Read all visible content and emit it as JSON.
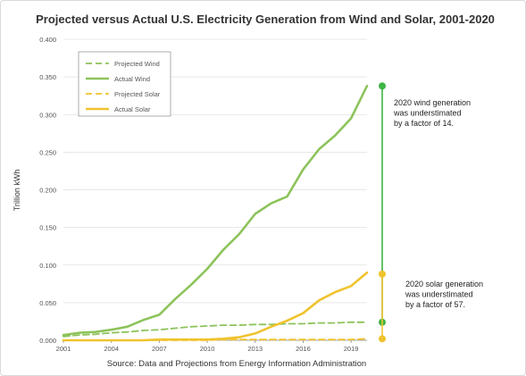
{
  "chart_data": {
    "type": "line",
    "title": "Projected versus Actual U.S. Electricity Generation from Wind and Solar, 2001-2020",
    "ylabel": "Trillion kWh",
    "xlabel": "",
    "source": "Source:  Data and Projections from Energy Information Administration",
    "xlim": [
      2001,
      2020
    ],
    "ylim": [
      0,
      0.4
    ],
    "x_ticks": [
      2001,
      2004,
      2007,
      2010,
      2013,
      2016,
      2019
    ],
    "y_ticks": [
      "0.000",
      "0.050",
      "0.100",
      "0.150",
      "0.200",
      "0.250",
      "0.300",
      "0.350",
      "0.400"
    ],
    "grid": "horizontal",
    "legend_position": "top-left",
    "x": [
      2001,
      2002,
      2003,
      2004,
      2005,
      2006,
      2007,
      2008,
      2009,
      2010,
      2011,
      2012,
      2013,
      2014,
      2015,
      2016,
      2017,
      2018,
      2019,
      2020
    ],
    "series": [
      {
        "name": "Projected Wind",
        "color": "#8dc35b",
        "style": "dashed",
        "values": [
          0.005,
          0.007,
          0.008,
          0.01,
          0.011,
          0.013,
          0.014,
          0.016,
          0.018,
          0.019,
          0.02,
          0.02,
          0.021,
          0.021,
          0.022,
          0.022,
          0.023,
          0.023,
          0.024,
          0.024
        ]
      },
      {
        "name": "Actual Wind",
        "color": "#8dc35b",
        "style": "solid",
        "values": [
          0.007,
          0.01,
          0.011,
          0.014,
          0.018,
          0.027,
          0.034,
          0.055,
          0.074,
          0.095,
          0.12,
          0.141,
          0.168,
          0.182,
          0.191,
          0.227,
          0.254,
          0.272,
          0.295,
          0.338
        ]
      },
      {
        "name": "Projected Solar",
        "color": "#f0c32e",
        "style": "dashed",
        "values": [
          0.0,
          0.0,
          0.0,
          0.0,
          0.0,
          0.0,
          0.0,
          0.0,
          0.0,
          0.0,
          0.001,
          0.001,
          0.001,
          0.001,
          0.001,
          0.001,
          0.001,
          0.001,
          0.001,
          0.002
        ]
      },
      {
        "name": "Actual Solar",
        "color": "#f0c32e",
        "style": "solid",
        "values": [
          0.0,
          0.0,
          0.0,
          0.0,
          0.0,
          0.0,
          0.001,
          0.001,
          0.001,
          0.001,
          0.002,
          0.004,
          0.009,
          0.018,
          0.026,
          0.036,
          0.053,
          0.064,
          0.072,
          0.09
        ]
      }
    ],
    "annotations": [
      {
        "lines": [
          "2020 wind generation",
          "was understimated",
          "by a factor of 14."
        ],
        "color": "#3db543",
        "range": [
          0.024,
          0.338
        ]
      },
      {
        "lines": [
          "2020 solar generation",
          "was understimated",
          "by a factor of 57."
        ],
        "color": "#f0c32e",
        "range": [
          0.002,
          0.088
        ]
      }
    ]
  }
}
